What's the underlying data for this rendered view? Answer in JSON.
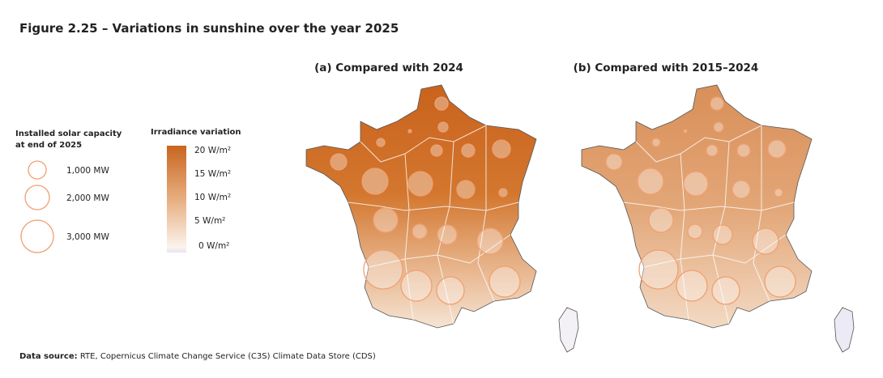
{
  "header": {
    "title": "Figure 2.25 – Variations in sunshine over the year 2025"
  },
  "panels": [
    {
      "title": "(a) Compared with 2024"
    },
    {
      "title": "(b) Compared with 2015–2024"
    }
  ],
  "legend_capacity": {
    "title_line1": "Installed solar capacity",
    "title_line2": "at end of 2025",
    "items": [
      "1,000 MW",
      "2,000 MW",
      "3,000 MW"
    ]
  },
  "legend_irradiance": {
    "title": "Irradiance variation",
    "items": [
      "20 W/m²",
      "15 W/m²",
      "10 W/m²",
      "5 W/m²",
      "0 W/m²"
    ]
  },
  "source": {
    "label": "Data source:",
    "text": "RTE, Copernicus Climate Change Service (C3S) Climate Data Store (CDS)"
  }
}
